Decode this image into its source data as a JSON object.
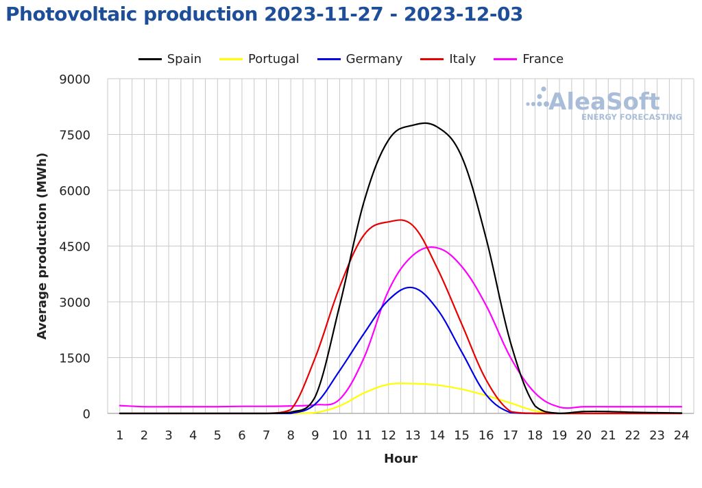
{
  "page": {
    "title": "Photovoltaic production 2023-11-27 - 2023-12-03",
    "logo_text": "AleaSoft",
    "logo_subtext": "ENERGY FORECASTING"
  },
  "chart_data": {
    "type": "line",
    "title": "Photovoltaic production 2023-11-27 - 2023-12-03",
    "xlabel": "Hour",
    "ylabel": "Average production (MWh)",
    "x": [
      1,
      2,
      3,
      4,
      5,
      6,
      7,
      8,
      9,
      10,
      11,
      12,
      13,
      14,
      15,
      16,
      17,
      18,
      19,
      20,
      21,
      22,
      23,
      24
    ],
    "x_ticks": [
      "1",
      "2",
      "3",
      "4",
      "5",
      "6",
      "7",
      "8",
      "9",
      "10",
      "11",
      "12",
      "13",
      "14",
      "15",
      "16",
      "17",
      "18",
      "19",
      "20",
      "21",
      "22",
      "23",
      "24"
    ],
    "y_ticks": [
      "0",
      "1500",
      "3000",
      "4500",
      "6000",
      "7500",
      "9000"
    ],
    "ylim": [
      0,
      9000
    ],
    "grid": true,
    "legend_position": "top",
    "series": [
      {
        "name": "Spain",
        "color": "#000000",
        "values": [
          0,
          0,
          0,
          0,
          0,
          0,
          0,
          30,
          450,
          2900,
          5700,
          7350,
          7750,
          7700,
          6900,
          4700,
          1900,
          200,
          0,
          50,
          50,
          30,
          20,
          10
        ]
      },
      {
        "name": "Portugal",
        "color": "#ffff00",
        "values": [
          0,
          0,
          0,
          0,
          0,
          0,
          0,
          0,
          20,
          200,
          550,
          780,
          800,
          760,
          650,
          480,
          280,
          70,
          0,
          0,
          0,
          0,
          0,
          0
        ]
      },
      {
        "name": "Germany",
        "color": "#0000e6",
        "values": [
          0,
          0,
          0,
          0,
          0,
          0,
          0,
          0,
          250,
          1150,
          2150,
          3050,
          3380,
          2800,
          1650,
          500,
          20,
          0,
          0,
          0,
          0,
          0,
          0,
          0
        ]
      },
      {
        "name": "Italy",
        "color": "#e60000",
        "values": [
          0,
          0,
          0,
          0,
          0,
          0,
          0,
          100,
          1500,
          3400,
          4800,
          5150,
          5050,
          3900,
          2400,
          900,
          50,
          0,
          0,
          0,
          0,
          0,
          0,
          0
        ]
      },
      {
        "name": "France",
        "color": "#ff00ff",
        "values": [
          210,
          180,
          180,
          180,
          180,
          190,
          190,
          200,
          230,
          380,
          1500,
          3300,
          4250,
          4450,
          3950,
          2900,
          1500,
          550,
          170,
          180,
          180,
          180,
          180,
          180
        ]
      }
    ]
  }
}
